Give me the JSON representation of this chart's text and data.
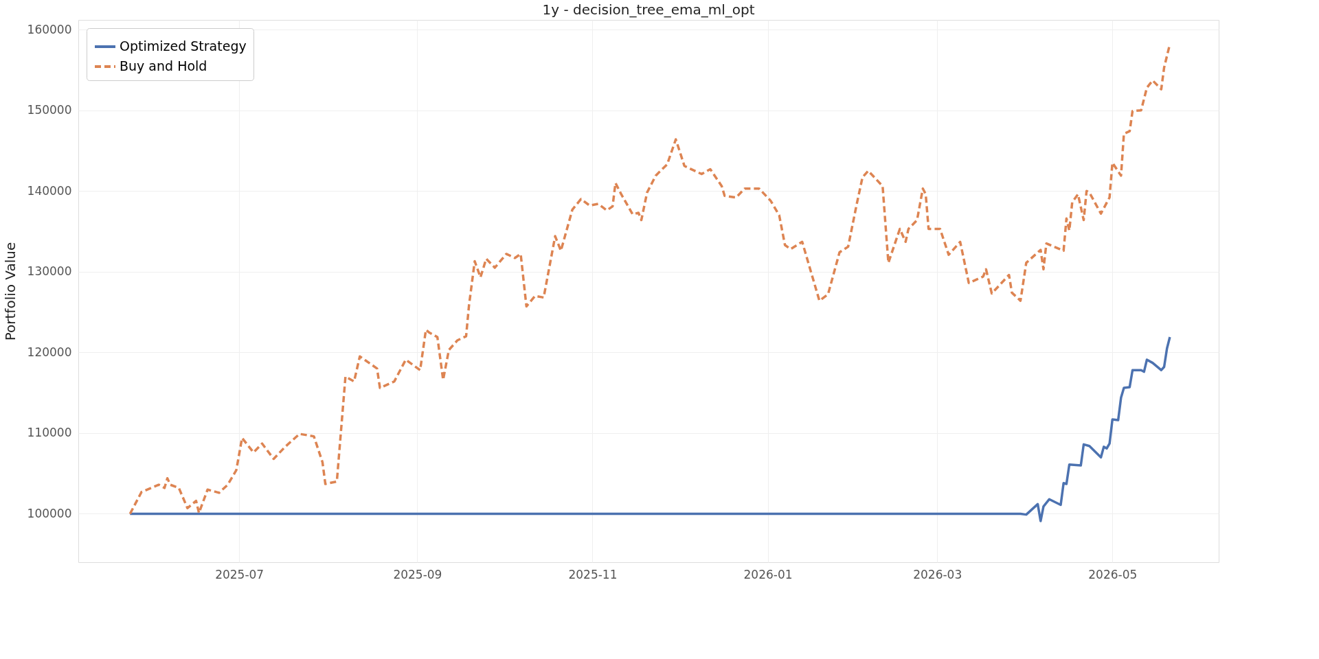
{
  "chart_data": {
    "type": "line",
    "title": "1y - decision_tree_ema_ml_opt",
    "ylabel": "Portfolio Value",
    "xlim": [
      "2025-05-06",
      "2026-06-07"
    ],
    "xticks": [
      "2025-07",
      "2025-09",
      "2025-11",
      "2026-01",
      "2026-03",
      "2026-05"
    ],
    "ylim": [
      94000,
      161200
    ],
    "yticks": [
      100000,
      110000,
      120000,
      130000,
      140000,
      150000,
      160000
    ],
    "grid": true,
    "legend": "top left",
    "series": [
      {
        "name": "Optimized Strategy",
        "color": "#4c72b0",
        "line_style": "solid",
        "x": [
          "2025-05-24",
          "2026-03-30",
          "2026-04-01",
          "2026-04-05",
          "2026-04-06",
          "2026-04-07",
          "2026-04-09",
          "2026-04-13",
          "2026-04-14",
          "2026-04-15",
          "2026-04-16",
          "2026-04-20",
          "2026-04-21",
          "2026-04-23",
          "2026-04-27",
          "2026-04-28",
          "2026-04-29",
          "2026-04-30",
          "2026-05-01",
          "2026-05-03",
          "2026-05-04",
          "2026-05-05",
          "2026-05-07",
          "2026-05-08",
          "2026-05-11",
          "2026-05-12",
          "2026-05-13",
          "2026-05-15",
          "2026-05-18",
          "2026-05-19",
          "2026-05-20",
          "2026-05-21"
        ],
        "values": [
          100000,
          100000,
          99900,
          101200,
          99100,
          100900,
          101800,
          101100,
          103800,
          103700,
          106100,
          106000,
          108600,
          108400,
          107000,
          108300,
          108100,
          108700,
          111700,
          111600,
          114400,
          115600,
          115700,
          117800,
          117800,
          117600,
          119100,
          118700,
          117800,
          118200,
          120500,
          121900
        ]
      },
      {
        "name": "Buy and Hold",
        "color": "#dd8452",
        "line_style": "dashed",
        "x": [
          "2025-05-24",
          "2025-05-28",
          "2025-06-03",
          "2025-06-05",
          "2025-06-06",
          "2025-06-07",
          "2025-06-10",
          "2025-06-13",
          "2025-06-16",
          "2025-06-17",
          "2025-06-20",
          "2025-06-24",
          "2025-06-27",
          "2025-06-30",
          "2025-07-02",
          "2025-07-06",
          "2025-07-09",
          "2025-07-13",
          "2025-07-17",
          "2025-07-22",
          "2025-07-27",
          "2025-07-30",
          "2025-07-31",
          "2025-08-04",
          "2025-08-07",
          "2025-08-10",
          "2025-08-12",
          "2025-08-18",
          "2025-08-19",
          "2025-08-24",
          "2025-08-28",
          "2025-09-02",
          "2025-09-04",
          "2025-09-05",
          "2025-09-08",
          "2025-09-10",
          "2025-09-12",
          "2025-09-15",
          "2025-09-18",
          "2025-09-19",
          "2025-09-21",
          "2025-09-23",
          "2025-09-25",
          "2025-09-28",
          "2025-10-02",
          "2025-10-05",
          "2025-10-07",
          "2025-10-09",
          "2025-10-12",
          "2025-10-15",
          "2025-10-19",
          "2025-10-21",
          "2025-10-25",
          "2025-10-28",
          "2025-10-31",
          "2025-11-03",
          "2025-11-06",
          "2025-11-08",
          "2025-11-09",
          "2025-11-11",
          "2025-11-15",
          "2025-11-17",
          "2025-11-18",
          "2025-11-20",
          "2025-11-23",
          "2025-11-27",
          "2025-11-30",
          "2025-12-03",
          "2025-12-09",
          "2025-12-12",
          "2025-12-16",
          "2025-12-17",
          "2025-12-21",
          "2025-12-24",
          "2025-12-29",
          "2026-01-02",
          "2026-01-05",
          "2026-01-07",
          "2026-01-09",
          "2026-01-13",
          "2026-01-19",
          "2026-01-22",
          "2026-01-26",
          "2026-01-29",
          "2026-02-01",
          "2026-02-03",
          "2026-02-05",
          "2026-02-10",
          "2026-02-12",
          "2026-02-16",
          "2026-02-18",
          "2026-02-19",
          "2026-02-22",
          "2026-02-24",
          "2026-02-25",
          "2026-02-26",
          "2026-03-02",
          "2026-03-05",
          "2026-03-09",
          "2026-03-12",
          "2026-03-17",
          "2026-03-18",
          "2026-03-20",
          "2026-03-26",
          "2026-03-27",
          "2026-03-30",
          "2026-04-01",
          "2026-04-06",
          "2026-04-07",
          "2026-04-08",
          "2026-04-14",
          "2026-04-15",
          "2026-04-16",
          "2026-04-17",
          "2026-04-19",
          "2026-04-21",
          "2026-04-22",
          "2026-04-23",
          "2026-04-27",
          "2026-04-30",
          "2026-05-01",
          "2026-05-04",
          "2026-05-05",
          "2026-05-07",
          "2026-05-08",
          "2026-05-11",
          "2026-05-13",
          "2026-05-15",
          "2026-05-18",
          "2026-05-19",
          "2026-05-21"
        ],
        "values": [
          100000,
          102700,
          103600,
          103200,
          104400,
          103600,
          103200,
          100700,
          101600,
          100100,
          103000,
          102600,
          103600,
          105400,
          109400,
          107600,
          108700,
          106800,
          108300,
          109900,
          109600,
          106400,
          103700,
          104000,
          117000,
          116400,
          119500,
          118000,
          115600,
          116400,
          119100,
          117800,
          122800,
          122500,
          121900,
          116600,
          120300,
          121500,
          122000,
          125800,
          131300,
          129300,
          131600,
          130500,
          132200,
          131700,
          132200,
          125700,
          127000,
          126800,
          134400,
          132600,
          137700,
          139000,
          138200,
          138400,
          137600,
          138100,
          141000,
          139600,
          137100,
          137300,
          136400,
          139800,
          141900,
          143300,
          146400,
          143100,
          142100,
          142700,
          140600,
          139400,
          139200,
          140300,
          140300,
          138800,
          137000,
          133300,
          132800,
          133700,
          126400,
          127200,
          132400,
          133100,
          138400,
          141700,
          142500,
          140600,
          131100,
          135300,
          133700,
          135300,
          136400,
          140300,
          139600,
          135300,
          135300,
          132100,
          133700,
          128600,
          129400,
          130300,
          127300,
          129600,
          127400,
          126400,
          131100,
          132700,
          130300,
          133500,
          132600,
          136600,
          135100,
          138600,
          139600,
          136400,
          140000,
          139800,
          137200,
          139200,
          143500,
          141900,
          147100,
          147400,
          149900,
          150000,
          152800,
          153700,
          152600,
          155300,
          158200
        ]
      }
    ]
  }
}
